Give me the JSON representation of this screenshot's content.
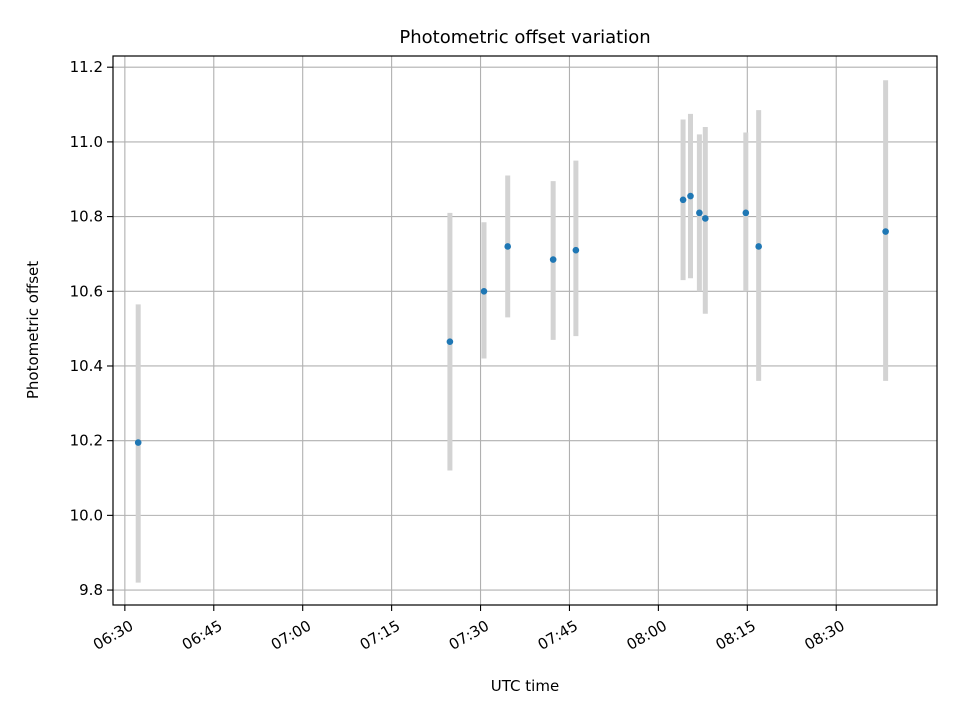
{
  "chart_data": {
    "type": "scatter",
    "title": "Photometric offset variation",
    "xlabel": "UTC time",
    "ylabel": "Photometric offset",
    "x_tick_labels": [
      "06:30",
      "06:45",
      "07:00",
      "07:15",
      "07:30",
      "07:45",
      "08:00",
      "08:15",
      "08:30"
    ],
    "x_tick_values": [
      "06:30",
      "06:45",
      "07:00",
      "07:15",
      "07:30",
      "07:45",
      "08:00",
      "08:15",
      "08:30"
    ],
    "xlim": [
      "06:28",
      "08:47"
    ],
    "y_tick_labels": [
      "9.8",
      "10.0",
      "10.2",
      "10.4",
      "10.6",
      "10.8",
      "11.0",
      "11.2"
    ],
    "y_tick_values": [
      9.8,
      10.0,
      10.2,
      10.4,
      10.6,
      10.8,
      11.0,
      11.2
    ],
    "ylim": [
      9.76,
      11.23
    ],
    "grid": true,
    "point_color": "#1f77b4",
    "errorbar_color": "#d3d3d3",
    "points": [
      {
        "x": "06:32:15",
        "y": 10.195,
        "ylow": 9.82,
        "yhigh": 10.565
      },
      {
        "x": "07:24:50",
        "y": 10.465,
        "ylow": 10.12,
        "yhigh": 10.81
      },
      {
        "x": "07:30:35",
        "y": 10.6,
        "ylow": 10.42,
        "yhigh": 10.785
      },
      {
        "x": "07:34:35",
        "y": 10.72,
        "ylow": 10.53,
        "yhigh": 10.91
      },
      {
        "x": "07:42:15",
        "y": 10.685,
        "ylow": 10.47,
        "yhigh": 10.895
      },
      {
        "x": "07:46:05",
        "y": 10.71,
        "ylow": 10.48,
        "yhigh": 10.95
      },
      {
        "x": "08:04:10",
        "y": 10.845,
        "ylow": 10.63,
        "yhigh": 11.06
      },
      {
        "x": "08:05:25",
        "y": 10.855,
        "ylow": 10.635,
        "yhigh": 11.075
      },
      {
        "x": "08:06:55",
        "y": 10.81,
        "ylow": 10.6,
        "yhigh": 11.02
      },
      {
        "x": "08:07:55",
        "y": 10.795,
        "ylow": 10.54,
        "yhigh": 11.04
      },
      {
        "x": "08:14:45",
        "y": 10.81,
        "ylow": 10.6,
        "yhigh": 11.025
      },
      {
        "x": "08:16:55",
        "y": 10.72,
        "ylow": 10.36,
        "yhigh": 11.085
      },
      {
        "x": "08:38:20",
        "y": 10.76,
        "ylow": 10.36,
        "yhigh": 11.165
      }
    ]
  }
}
